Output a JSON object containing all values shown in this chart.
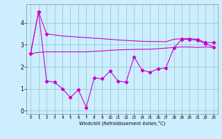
{
  "xlabel": "Windchill (Refroidissement éolien,°C)",
  "bg_color": "#cceeff",
  "grid_color": "#99cccc",
  "line_color": "#cc00cc",
  "xlim": [
    -0.5,
    23.5
  ],
  "ylim": [
    -0.15,
    4.85
  ],
  "yticks": [
    0,
    1,
    2,
    3,
    4
  ],
  "xticks": [
    0,
    1,
    2,
    3,
    4,
    5,
    6,
    7,
    8,
    9,
    10,
    11,
    12,
    13,
    14,
    15,
    16,
    17,
    18,
    19,
    20,
    21,
    22,
    23
  ],
  "line1_x": [
    0,
    1,
    2,
    3,
    4,
    5,
    6,
    7,
    8,
    9,
    10,
    11,
    12,
    13,
    14,
    15,
    16,
    17,
    18,
    19,
    20,
    21,
    22,
    23
  ],
  "line1_y": [
    2.6,
    4.5,
    3.5,
    3.45,
    3.4,
    3.38,
    3.35,
    3.33,
    3.3,
    3.28,
    3.25,
    3.22,
    3.2,
    3.18,
    3.16,
    3.15,
    3.15,
    3.14,
    3.25,
    3.28,
    3.28,
    3.25,
    3.1,
    3.1
  ],
  "line1_markers_x": [
    0,
    1,
    2,
    19,
    20,
    21,
    22,
    23
  ],
  "line1_markers_y": [
    2.6,
    4.5,
    3.5,
    3.28,
    3.28,
    3.25,
    3.1,
    3.1
  ],
  "line2_x": [
    0,
    1,
    2,
    3,
    4,
    5,
    6,
    7,
    8,
    9,
    10,
    11,
    12,
    13,
    14,
    15,
    16,
    17,
    18,
    19,
    20,
    21,
    22,
    23
  ],
  "line2_y": [
    2.6,
    2.65,
    2.68,
    2.68,
    2.68,
    2.68,
    2.68,
    2.68,
    2.7,
    2.72,
    2.75,
    2.77,
    2.78,
    2.79,
    2.8,
    2.8,
    2.82,
    2.85,
    2.88,
    2.9,
    2.9,
    2.88,
    2.9,
    2.88
  ],
  "line3_x": [
    0,
    1,
    2,
    3,
    4,
    5,
    6,
    7,
    8,
    9,
    10,
    11,
    12,
    13,
    14,
    15,
    16,
    17,
    18,
    19,
    20,
    21,
    22,
    23
  ],
  "line3_y": [
    2.6,
    4.5,
    1.35,
    1.3,
    1.0,
    0.6,
    0.95,
    0.15,
    1.5,
    1.45,
    1.8,
    1.35,
    1.3,
    2.45,
    1.85,
    1.75,
    1.9,
    1.95,
    2.85,
    3.25,
    3.25,
    3.2,
    3.05,
    2.9
  ]
}
